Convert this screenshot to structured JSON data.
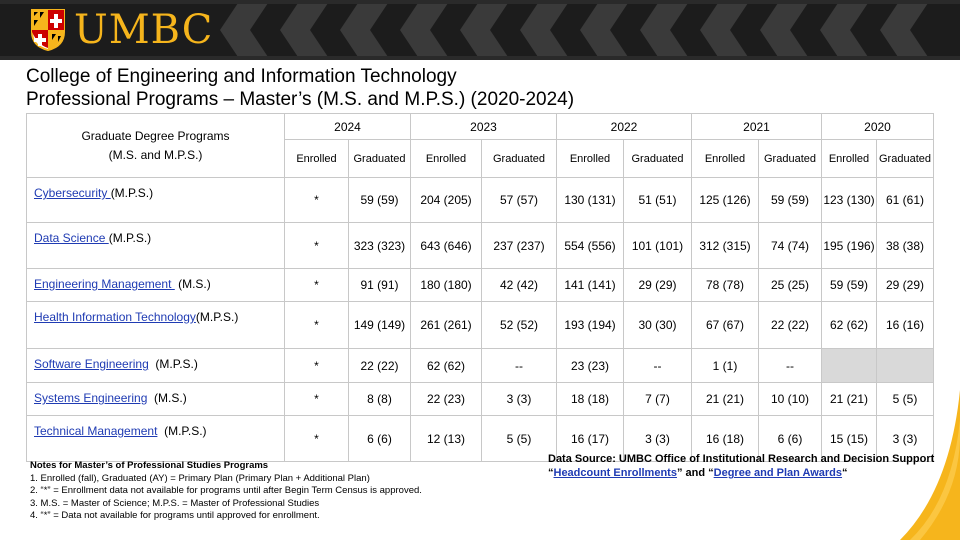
{
  "header": {
    "logo_text": "UMBC"
  },
  "title": {
    "line1": "College of Engineering and Information Technology",
    "line2": "Professional Programs – Master’s (M.S. and M.P.S.) (2020-2024)"
  },
  "table": {
    "program_header_line1": "Graduate Degree  Programs",
    "program_header_line2": "(M.S. and M.P.S.)",
    "years": [
      "2024",
      "2023",
      "2022",
      "2021",
      "2020"
    ],
    "sub_headers": [
      "Enrolled",
      "Graduated"
    ],
    "rows": [
      {
        "link": "Cybersecurity ",
        "suffix": "(M.P.S.)",
        "cells": [
          "*",
          "59 (59)",
          "204 (205)",
          "57 (57)",
          "130 (131)",
          "51 (51)",
          "125 (126)",
          "59 (59)",
          "123 (130)",
          "61 (61)"
        ]
      },
      {
        "link": "Data Science ",
        "suffix": "(M.P.S.)",
        "cells": [
          "*",
          "323 (323)",
          "643 (646)",
          "237 (237)",
          "554 (556)",
          "101 (101)",
          "312 (315)",
          "74 (74)",
          "195 (196)",
          "38 (38)"
        ]
      },
      {
        "link": "Engineering Management  ",
        "suffix": " (M.S.)",
        "cells": [
          "*",
          "91 (91)",
          "180 (180)",
          "42 (42)",
          "141 (141)",
          "29 (29)",
          "78 (78)",
          "25 (25)",
          "59 (59)",
          "29 (29)"
        ]
      },
      {
        "link": "Health Information Technology",
        "suffix": "(M.P.S.)",
        "cells": [
          "*",
          "149 (149)",
          "261 (261)",
          "52 (52)",
          "193 (194)",
          "30 (30)",
          "67 (67)",
          "22 (22)",
          "62 (62)",
          "16 (16)"
        ]
      },
      {
        "link": "Software Engineering",
        "suffix": "  (M.P.S.)",
        "cells": [
          "*",
          "22 (22)",
          "62 (62)",
          "--",
          "23 (23)",
          "--",
          "1 (1)",
          "--",
          "",
          ""
        ]
      },
      {
        "link": "Systems Engineering",
        "suffix": "  (M.S.)",
        "cells": [
          "*",
          "8 (8)",
          "22 (23)",
          "3 (3)",
          "18 (18)",
          "7 (7)",
          "21 (21)",
          "10 (10)",
          "21 (21)",
          "5 (5)"
        ]
      },
      {
        "link": "Technical Management",
        "suffix": "  (M.P.S.)",
        "cells": [
          "*",
          "6 (6)",
          "12 (13)",
          "5 (5)",
          "16 (17)",
          "3 (3)",
          "16 (18)",
          "6 (6)",
          "15 (15)",
          "3 (3)"
        ]
      }
    ]
  },
  "notes": {
    "title": "Notes for Master’s of Professional Studies Programs",
    "items": [
      "1.  Enrolled (fall), Graduated (AY) = Primary Plan (Primary Plan + Additional Plan)",
      "2. “*” = Enrollment data not available for programs until after Begin Term Census is approved.",
      "3.  M.S. = Master of Science; M.P.S. = Master of Professional Studies",
      "4.  “*” = Data not available for programs until approved for enrollment."
    ]
  },
  "source": {
    "line1": "Data Source: UMBC Office of Institutional Research and Decision Support",
    "open_quote": "“",
    "link1": "Headcount Enrollments",
    "middle": "” and “",
    "link2": "Degree and Plan Awards",
    "close_quote": "“"
  },
  "colors": {
    "banner": "#1c1c1c",
    "logo_gold": "#f6b51c",
    "link_blue": "#1f3bb3",
    "empty_cell": "#d9d9d9"
  }
}
